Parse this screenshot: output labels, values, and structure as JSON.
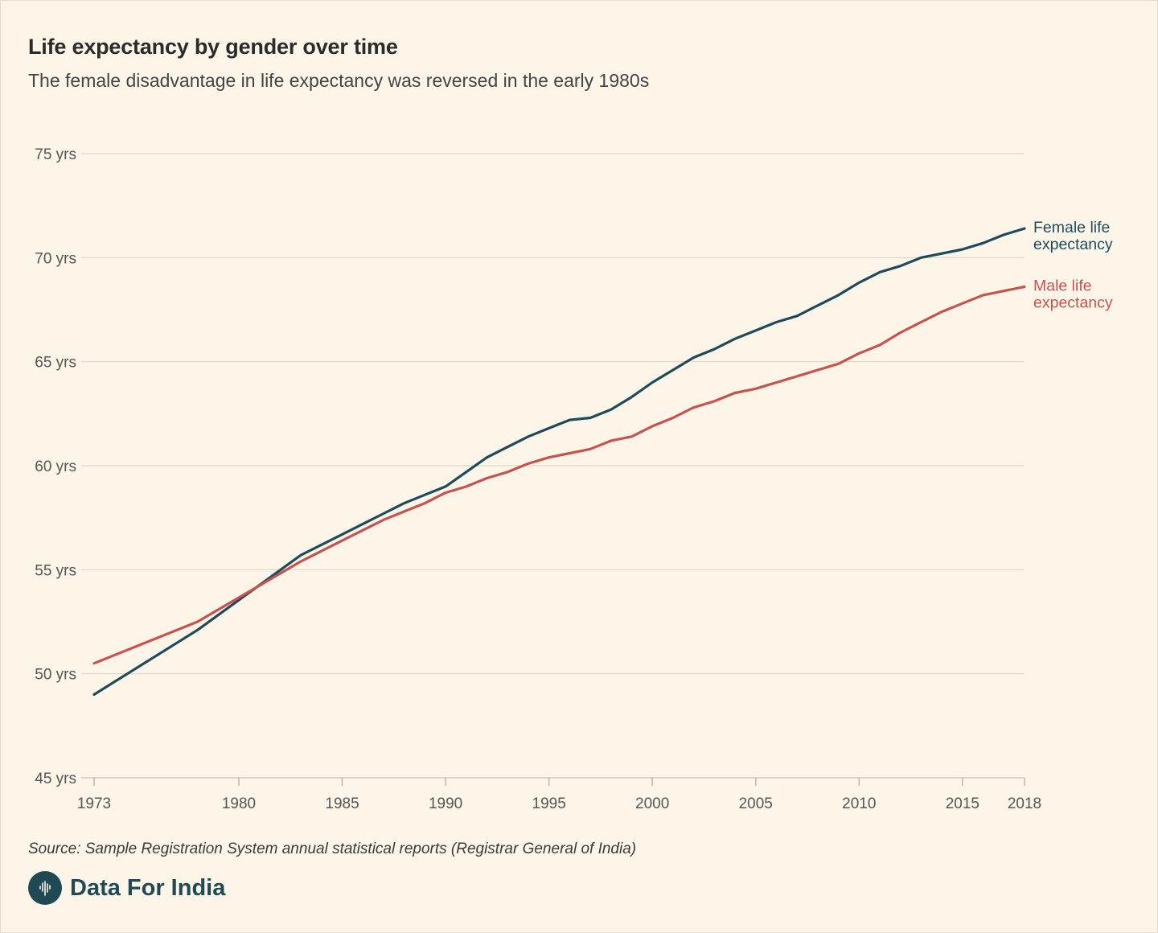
{
  "title": "Life expectancy by gender over time",
  "subtitle": "The female disadvantage in life expectancy was reversed in the early 1980s",
  "source": "Source: Sample Registration System annual statistical reports (Registrar General of India)",
  "brand": {
    "name": "Data For India",
    "color": "#1f4a55"
  },
  "chart_data": {
    "type": "line",
    "title": "Life expectancy by gender over time",
    "xlabel": "",
    "ylabel": "",
    "xlim": [
      1973,
      2018
    ],
    "ylim": [
      45,
      75
    ],
    "grid": true,
    "y_ticks": [
      {
        "value": 75,
        "label": "75 yrs"
      },
      {
        "value": 70,
        "label": "70 yrs"
      },
      {
        "value": 65,
        "label": "65 yrs"
      },
      {
        "value": 60,
        "label": "60 yrs"
      },
      {
        "value": 55,
        "label": "55 yrs"
      },
      {
        "value": 50,
        "label": "50 yrs"
      },
      {
        "value": 45,
        "label": "45 yrs"
      }
    ],
    "x_ticks": [
      {
        "value": 1973,
        "label": "1973"
      },
      {
        "value": 1980,
        "label": "1980"
      },
      {
        "value": 1985,
        "label": "1985"
      },
      {
        "value": 1990,
        "label": "1990"
      },
      {
        "value": 1995,
        "label": "1995"
      },
      {
        "value": 2000,
        "label": "2000"
      },
      {
        "value": 2005,
        "label": "2005"
      },
      {
        "value": 2010,
        "label": "2010"
      },
      {
        "value": 2015,
        "label": "2015"
      },
      {
        "value": 2018,
        "label": "2018"
      }
    ],
    "series": [
      {
        "name": "Female life expectancy",
        "label_lines": [
          "Female life",
          "expectancy"
        ],
        "color": "#1f4a5c",
        "points": [
          [
            1973,
            49.0
          ],
          [
            1978,
            52.1
          ],
          [
            1983,
            55.7
          ],
          [
            1984,
            56.2
          ],
          [
            1985,
            56.7
          ],
          [
            1986,
            57.2
          ],
          [
            1987,
            57.7
          ],
          [
            1988,
            58.2
          ],
          [
            1989,
            58.6
          ],
          [
            1990,
            59.0
          ],
          [
            1991,
            59.7
          ],
          [
            1992,
            60.4
          ],
          [
            1993,
            60.9
          ],
          [
            1994,
            61.4
          ],
          [
            1995,
            61.8
          ],
          [
            1996,
            62.2
          ],
          [
            1997,
            62.3
          ],
          [
            1998,
            62.7
          ],
          [
            1999,
            63.3
          ],
          [
            2000,
            64.0
          ],
          [
            2001,
            64.6
          ],
          [
            2002,
            65.2
          ],
          [
            2003,
            65.6
          ],
          [
            2004,
            66.1
          ],
          [
            2005,
            66.5
          ],
          [
            2006,
            66.9
          ],
          [
            2007,
            67.2
          ],
          [
            2008,
            67.7
          ],
          [
            2009,
            68.2
          ],
          [
            2010,
            68.8
          ],
          [
            2011,
            69.3
          ],
          [
            2012,
            69.6
          ],
          [
            2013,
            70.0
          ],
          [
            2014,
            70.2
          ],
          [
            2015,
            70.4
          ],
          [
            2016,
            70.7
          ],
          [
            2017,
            71.1
          ],
          [
            2018,
            71.4
          ]
        ]
      },
      {
        "name": "Male life expectancy",
        "label_lines": [
          "Male life",
          "expectancy"
        ],
        "color": "#c8524f",
        "points": [
          [
            1973,
            50.5
          ],
          [
            1978,
            52.5
          ],
          [
            1983,
            55.4
          ],
          [
            1984,
            55.9
          ],
          [
            1985,
            56.4
          ],
          [
            1986,
            56.9
          ],
          [
            1987,
            57.4
          ],
          [
            1988,
            57.8
          ],
          [
            1989,
            58.2
          ],
          [
            1990,
            58.7
          ],
          [
            1991,
            59.0
          ],
          [
            1992,
            59.4
          ],
          [
            1993,
            59.7
          ],
          [
            1994,
            60.1
          ],
          [
            1995,
            60.4
          ],
          [
            1996,
            60.6
          ],
          [
            1997,
            60.8
          ],
          [
            1998,
            61.2
          ],
          [
            1999,
            61.4
          ],
          [
            2000,
            61.9
          ],
          [
            2001,
            62.3
          ],
          [
            2002,
            62.8
          ],
          [
            2003,
            63.1
          ],
          [
            2004,
            63.5
          ],
          [
            2005,
            63.7
          ],
          [
            2006,
            64.0
          ],
          [
            2007,
            64.3
          ],
          [
            2008,
            64.6
          ],
          [
            2009,
            64.9
          ],
          [
            2010,
            65.4
          ],
          [
            2011,
            65.8
          ],
          [
            2012,
            66.4
          ],
          [
            2013,
            66.9
          ],
          [
            2014,
            67.4
          ],
          [
            2015,
            67.8
          ],
          [
            2016,
            68.2
          ],
          [
            2017,
            68.4
          ],
          [
            2018,
            68.6
          ]
        ]
      }
    ]
  }
}
